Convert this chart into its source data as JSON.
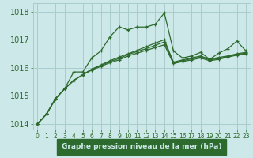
{
  "title": "Graphe pression niveau de la mer (hPa)",
  "background_color": "#cce8e8",
  "grid_color": "#aacccc",
  "line_color": "#2d6a2d",
  "label_bg_color": "#2d6a2d",
  "label_text_color": "#cce8e8",
  "xlim": [
    -0.5,
    23.5
  ],
  "ylim": [
    1013.8,
    1018.3
  ],
  "yticks": [
    1014,
    1015,
    1016,
    1017,
    1018
  ],
  "xticks": [
    0,
    1,
    2,
    3,
    4,
    5,
    6,
    7,
    8,
    9,
    10,
    11,
    12,
    13,
    14,
    15,
    16,
    17,
    18,
    19,
    20,
    21,
    22,
    23
  ],
  "series": [
    [
      1014.0,
      1014.35,
      1014.9,
      1015.25,
      1015.55,
      1015.75,
      1015.95,
      1016.1,
      1016.25,
      1016.38,
      1016.5,
      1016.62,
      1016.75,
      1016.88,
      1017.0,
      1016.2,
      1016.28,
      1016.35,
      1016.42,
      1016.3,
      1016.37,
      1016.42,
      1016.5,
      1016.55
    ],
    [
      1014.0,
      1014.35,
      1014.9,
      1015.25,
      1015.55,
      1015.75,
      1015.92,
      1016.05,
      1016.18,
      1016.28,
      1016.42,
      1016.52,
      1016.62,
      1016.72,
      1016.82,
      1016.15,
      1016.22,
      1016.28,
      1016.35,
      1016.25,
      1016.3,
      1016.38,
      1016.45,
      1016.5
    ],
    [
      1014.0,
      1014.35,
      1014.9,
      1015.25,
      1015.55,
      1015.75,
      1015.95,
      1016.08,
      1016.22,
      1016.33,
      1016.47,
      1016.58,
      1016.68,
      1016.8,
      1016.92,
      1016.18,
      1016.25,
      1016.32,
      1016.38,
      1016.28,
      1016.33,
      1016.4,
      1016.48,
      1016.52
    ],
    [
      1014.0,
      1014.35,
      1014.9,
      1015.25,
      1015.85,
      1015.85,
      1016.35,
      1016.6,
      1017.1,
      1017.45,
      1017.35,
      1017.45,
      1017.45,
      1017.55,
      1017.95,
      1016.6,
      1016.35,
      1016.42,
      1016.55,
      1016.3,
      1016.52,
      1016.68,
      1016.95,
      1016.6
    ]
  ],
  "ytick_fontsize": 7,
  "xtick_fontsize": 5.5
}
